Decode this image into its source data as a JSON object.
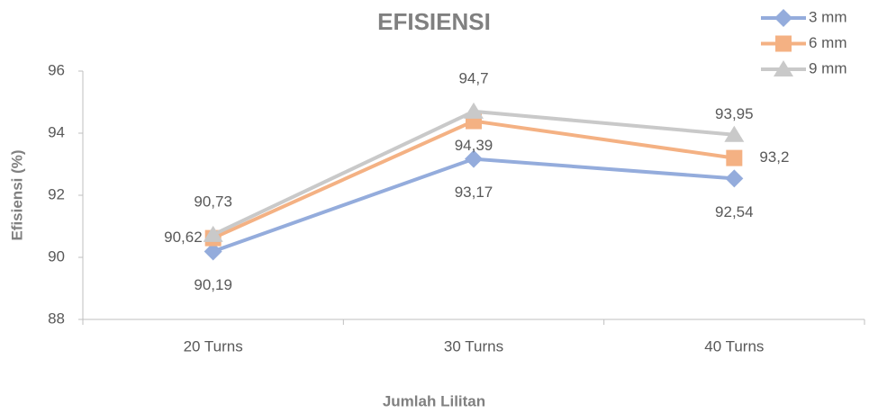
{
  "chart_data": {
    "type": "line",
    "title": "EFISIENSI",
    "x_label": "Jumlah Lilitan",
    "y_label": "Efisiensi (%)",
    "categories": [
      "20 Turns",
      "30 Turns",
      "40 Turns"
    ],
    "series": [
      {
        "name": "3 mm",
        "color": "#94acdc",
        "marker": "diamond",
        "values": [
          90.19,
          93.17,
          92.54
        ],
        "value_labels": [
          "90,19",
          "93,17",
          "92,54"
        ]
      },
      {
        "name": "6 mm",
        "color": "#f4b183",
        "marker": "square",
        "values": [
          90.62,
          94.39,
          93.2
        ],
        "value_labels": [
          "90,62",
          "94,39",
          "93,2"
        ]
      },
      {
        "name": "9 mm",
        "color": "#c9c9c9",
        "marker": "triangle",
        "values": [
          90.73,
          94.7,
          93.95
        ],
        "value_labels": [
          "90,73",
          "94,7",
          "93,95"
        ]
      }
    ],
    "ylim": [
      88,
      96
    ],
    "yticks": [
      88,
      90,
      92,
      94,
      96
    ],
    "legend": "top-right"
  }
}
